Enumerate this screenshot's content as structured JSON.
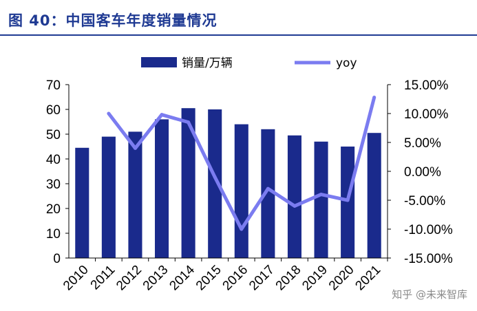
{
  "header": {
    "title": "图 40：中国客车年度销量情况"
  },
  "watermark": {
    "text": "知乎 @未来智库"
  },
  "chart_data": {
    "type": "bar",
    "categories": [
      "2010",
      "2011",
      "2012",
      "2013",
      "2014",
      "2015",
      "2016",
      "2017",
      "2018",
      "2019",
      "2020",
      "2021"
    ],
    "series": [
      {
        "name": "销量/万辆",
        "type": "bar",
        "axis": "left",
        "color": "#1a2a8c",
        "values": [
          44.5,
          49,
          51,
          56,
          60.5,
          60,
          54,
          52,
          49.5,
          47,
          45,
          50.5
        ]
      },
      {
        "name": "yoy",
        "type": "line",
        "axis": "right",
        "color": "#7b7cf0",
        "values": [
          null,
          10.0,
          4.0,
          9.8,
          8.5,
          -1.0,
          -10.0,
          -3.0,
          -6.0,
          -4.0,
          -5.0,
          12.8
        ]
      }
    ],
    "y_left": {
      "ylim": [
        0,
        70
      ],
      "ticks": [
        "0",
        "10",
        "20",
        "30",
        "40",
        "50",
        "60",
        "70"
      ]
    },
    "y_right": {
      "ylim": [
        -15,
        15
      ],
      "ticks": [
        "-15.00%",
        "-10.00%",
        "-5.00%",
        "0.00%",
        "5.00%",
        "10.00%",
        "15.00%"
      ]
    },
    "legend": {
      "placement": "top"
    },
    "grid": false
  }
}
